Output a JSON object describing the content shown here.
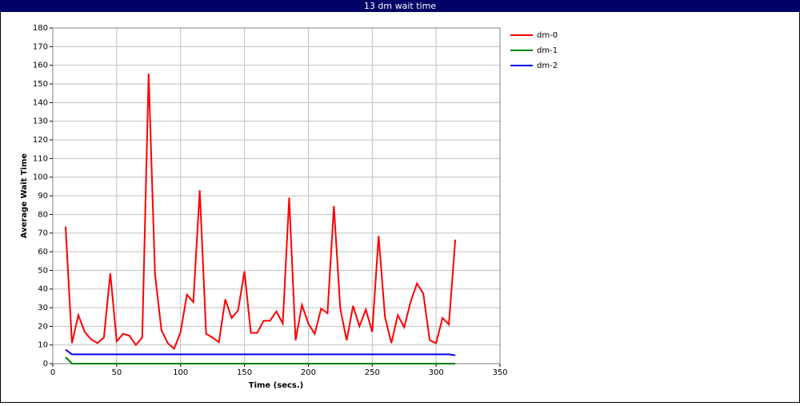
{
  "chart_data": {
    "type": "line",
    "title": "13 dm wait time",
    "x_label": "Time (secs.)",
    "y_label": "Average Wait Time",
    "x": [
      10,
      15,
      20,
      25,
      30,
      35,
      40,
      45,
      50,
      55,
      60,
      65,
      70,
      75,
      80,
      85,
      90,
      95,
      100,
      105,
      110,
      115,
      120,
      125,
      130,
      135,
      140,
      145,
      150,
      155,
      160,
      165,
      170,
      175,
      180,
      185,
      190,
      195,
      200,
      205,
      210,
      215,
      220,
      225,
      230,
      235,
      240,
      245,
      250,
      255,
      260,
      265,
      270,
      275,
      280,
      285,
      290,
      295,
      300,
      305,
      310,
      315
    ],
    "series": [
      {
        "name": "dm-0",
        "color": "#ff0000",
        "values": [
          73.5,
          11,
          26,
          17,
          13,
          11,
          14,
          48.5,
          12,
          16,
          15,
          10,
          14,
          155.5,
          48,
          18,
          11,
          8,
          17,
          37,
          33,
          93,
          16,
          14,
          11.5,
          34.5,
          24.5,
          28.5,
          49.5,
          16.5,
          16.5,
          23,
          23,
          28,
          21.5,
          89,
          12.5,
          31.5,
          21.5,
          16,
          29.5,
          27,
          84.5,
          29.5,
          12.5,
          31,
          20,
          29,
          17,
          68.5,
          25,
          11,
          26,
          19.5,
          33,
          43,
          37.5,
          12.5,
          11,
          24.5,
          21,
          66.5
        ]
      },
      {
        "name": "dm-1",
        "color": "#008000",
        "values": [
          3.5,
          0,
          0,
          0,
          0,
          0,
          0,
          0,
          0,
          0,
          0,
          0,
          0,
          0,
          0,
          0,
          0,
          0,
          0,
          0,
          0,
          0,
          0,
          0,
          0,
          0,
          0,
          0,
          0,
          0,
          0,
          0,
          0,
          0,
          0,
          0,
          0,
          0,
          0,
          0,
          0,
          0,
          0,
          0,
          0,
          0,
          0,
          0,
          0,
          0,
          0,
          0,
          0,
          0,
          0,
          0,
          0,
          0,
          0,
          0,
          0,
          0
        ]
      },
      {
        "name": "dm-2",
        "color": "#0000ff",
        "values": [
          7.5,
          5,
          5,
          5,
          5,
          5,
          5,
          5,
          5,
          5,
          5,
          5,
          5,
          5,
          5,
          5,
          5,
          5,
          5,
          5,
          5,
          5,
          5,
          5,
          5,
          5,
          5,
          5,
          5,
          5,
          5,
          5,
          5,
          5,
          5,
          5,
          5,
          5,
          5,
          5,
          5,
          5,
          5,
          5,
          5,
          5,
          5,
          5,
          5,
          5,
          5,
          5,
          5,
          5,
          5,
          5,
          5,
          5,
          5,
          5,
          5,
          4.5
        ]
      }
    ],
    "xlim": [
      0,
      350
    ],
    "xticks": [
      0,
      50,
      100,
      150,
      200,
      250,
      300,
      350
    ],
    "ylim": [
      0,
      180
    ],
    "yticks": [
      0,
      10,
      20,
      30,
      40,
      50,
      60,
      70,
      80,
      90,
      100,
      110,
      120,
      130,
      140,
      150,
      160,
      170,
      180
    ],
    "grid": true,
    "legend": "right"
  }
}
